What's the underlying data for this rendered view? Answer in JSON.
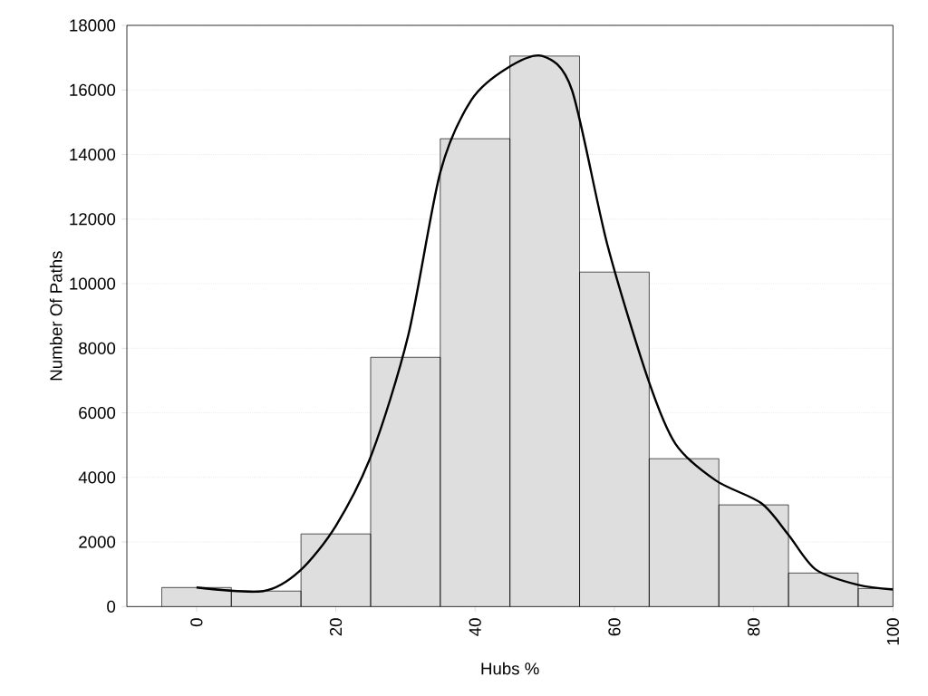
{
  "chart_data": {
    "type": "histogram",
    "xlabel": "Hubs %",
    "ylabel": "Number Of Paths",
    "bins": [
      -5,
      5,
      15,
      25,
      35,
      45,
      55,
      65,
      75,
      85,
      95,
      100
    ],
    "values": [
      590,
      480,
      2250,
      7720,
      14490,
      17050,
      10360,
      4580,
      3150,
      1040,
      560
    ],
    "color": "#dedede",
    "series": [
      {
        "type": "line",
        "color": "#000000",
        "x": [
          0,
          9.6,
          14.8,
          20,
          25.2,
          30.4,
          35,
          39.5,
          44.7,
          49.7,
          53.9,
          59,
          64.9,
          68.8,
          74.6,
          81.1,
          85,
          88.9,
          95,
          100
        ],
        "values": [
          590,
          480,
          1100,
          2500,
          4750,
          8400,
          13450,
          15700,
          16690,
          17050,
          16000,
          11200,
          7000,
          5030,
          3900,
          3200,
          2220,
          1150,
          670,
          530
        ]
      }
    ],
    "xlim": [
      -10,
      100
    ],
    "xticks": [
      0,
      20,
      40,
      60,
      80,
      100
    ],
    "ylim": [
      0,
      18000
    ],
    "yticks": [
      0,
      2000,
      4000,
      6000,
      8000,
      10000,
      12000,
      14000,
      16000,
      18000
    ],
    "grid": "y"
  }
}
